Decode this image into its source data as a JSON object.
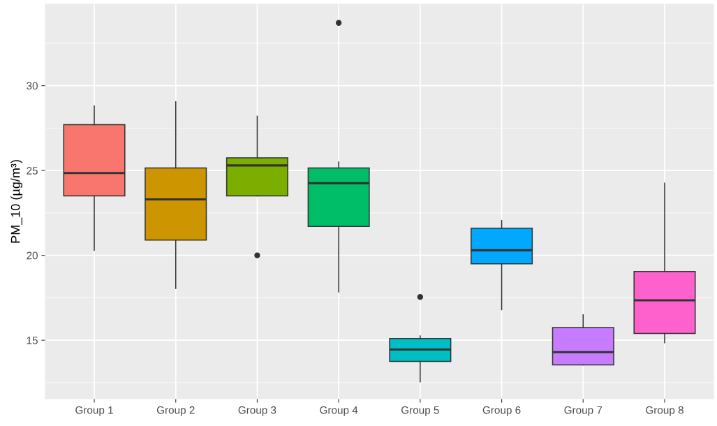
{
  "chart_data": {
    "type": "box",
    "ylabel": "PM_10 (µg/m³)",
    "categories": [
      "Group 1",
      "Group 2",
      "Group 3",
      "Group 4",
      "Group 5",
      "Group 6",
      "Group 7",
      "Group 8"
    ],
    "colors": [
      "#f8766d",
      "#cd9600",
      "#7cae00",
      "#00be67",
      "#00bfc4",
      "#00a9ff",
      "#c77cff",
      "#ff61cc"
    ],
    "boxes": [
      {
        "low": 20.3,
        "q1": 23.5,
        "median": 24.85,
        "q3": 27.7,
        "high": 28.8
      },
      {
        "low": 18.05,
        "q1": 20.9,
        "median": 23.3,
        "q3": 25.15,
        "high": 29.05
      },
      {
        "low": 23.5,
        "q1": 23.5,
        "median": 25.3,
        "q3": 25.75,
        "high": 28.2,
        "outliers": [
          20.0
        ]
      },
      {
        "low": 17.85,
        "q1": 21.7,
        "median": 24.25,
        "q3": 25.15,
        "high": 25.5,
        "outliers": [
          33.7
        ]
      },
      {
        "low": 12.55,
        "q1": 13.75,
        "median": 14.45,
        "q3": 15.1,
        "high": 15.25,
        "outliers": [
          17.55
        ]
      },
      {
        "low": 16.8,
        "q1": 19.5,
        "median": 20.3,
        "q3": 21.6,
        "high": 22.05
      },
      {
        "low": 13.55,
        "q1": 13.55,
        "median": 14.3,
        "q3": 15.75,
        "high": 16.5
      },
      {
        "low": 14.85,
        "q1": 15.4,
        "median": 17.35,
        "q3": 19.05,
        "high": 24.25
      }
    ],
    "ylim": [
      11.55,
      34.8
    ],
    "yticks": [
      15,
      20,
      25,
      30
    ],
    "grid": true,
    "legend": false
  }
}
